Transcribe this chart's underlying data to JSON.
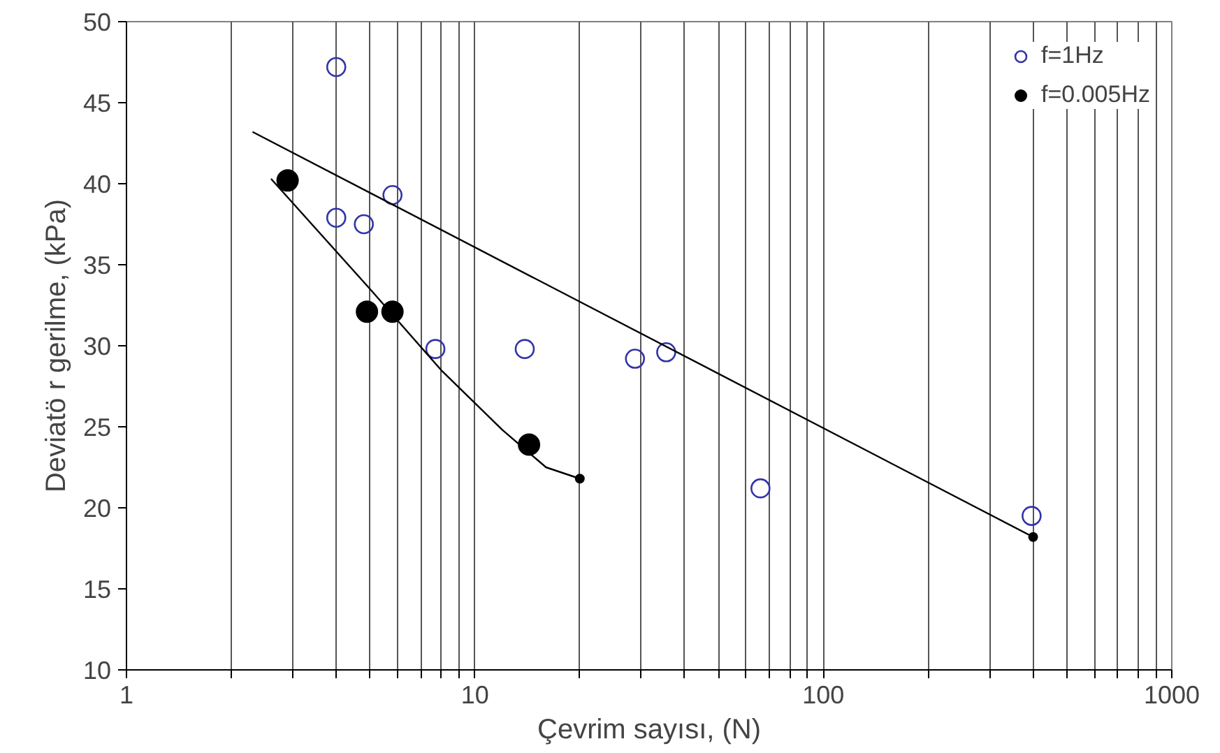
{
  "chart_data": {
    "type": "scatter",
    "xlabel": "Çevrim sayısı, (N)",
    "ylabel": "Deviatö r gerilme, (kPa)",
    "log": "x",
    "grid": "x",
    "legend": "top right",
    "xlim": [
      1,
      1000
    ],
    "ylim": [
      10,
      50
    ],
    "xticks": [
      1,
      {
        "value": 2,
        "label": null
      },
      {
        "value": 3,
        "label": null
      },
      {
        "value": 4,
        "label": null
      },
      {
        "value": 5,
        "label": null
      },
      {
        "value": 6,
        "label": null
      },
      {
        "value": 7,
        "label": null
      },
      {
        "value": 8,
        "label": null
      },
      {
        "value": 9,
        "label": null
      },
      10,
      {
        "value": 20,
        "label": null
      },
      {
        "value": 30,
        "label": null
      },
      {
        "value": 40,
        "label": null
      },
      {
        "value": 50,
        "label": null
      },
      {
        "value": 60,
        "label": null
      },
      {
        "value": 70,
        "label": null
      },
      {
        "value": 80,
        "label": null
      },
      {
        "value": 90,
        "label": null
      },
      100,
      {
        "value": 200,
        "label": null
      },
      {
        "value": 300,
        "label": null
      },
      {
        "value": 400,
        "label": null
      },
      {
        "value": 500,
        "label": null
      },
      {
        "value": 600,
        "label": null
      },
      {
        "value": 700,
        "label": null
      },
      {
        "value": 800,
        "label": null
      },
      {
        "value": 900,
        "label": null
      },
      1000
    ],
    "yticks": [
      10,
      15,
      20,
      25,
      30,
      35,
      40,
      45,
      50
    ],
    "series": [
      {
        "name": "f=1Hz",
        "color": "#3333aa",
        "marker": "circle_open",
        "x": [
          4,
          4,
          4.8,
          5.8,
          7.7,
          13.9,
          28.8,
          35.4,
          66,
          396
        ],
        "values": [
          47.2,
          37.9,
          37.5,
          39.3,
          29.8,
          29.8,
          29.2,
          29.6,
          21.2,
          19.5
        ]
      },
      {
        "name": "f=0.005Hz",
        "color": "#000000",
        "marker": "circle",
        "x": [
          2.9,
          4.9,
          5.8,
          14.3
        ],
        "values": [
          40.2,
          32.1,
          32.1,
          23.9
        ]
      },
      {
        "type": "line",
        "color": "#000000",
        "x": [
          2.3,
          400
        ],
        "values": [
          43.2,
          18.2
        ]
      },
      {
        "type": "line",
        "color": "#000000",
        "x": [
          2.6,
          5,
          8,
          12,
          16,
          20
        ],
        "values": [
          40.3,
          33.5,
          28.5,
          24.8,
          22.5,
          21.8
        ]
      },
      {
        "color": "#000000",
        "marker": "dot",
        "x": [
          20,
          400
        ],
        "values": [
          21.8,
          18.2
        ]
      }
    ]
  }
}
